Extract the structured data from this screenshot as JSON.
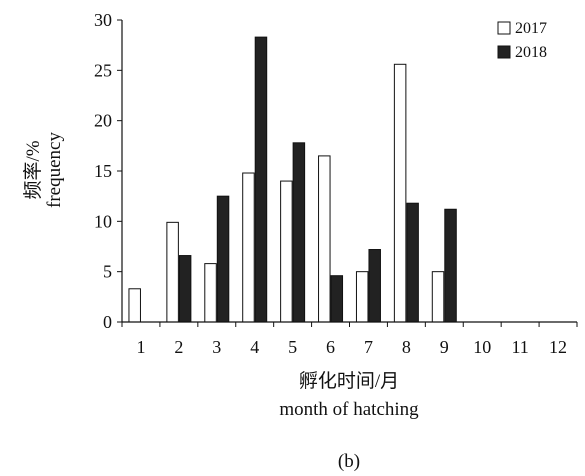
{
  "chart_data": {
    "type": "bar",
    "categories": [
      "1",
      "2",
      "3",
      "4",
      "5",
      "6",
      "7",
      "8",
      "9",
      "10",
      "11",
      "12"
    ],
    "series": [
      {
        "name": "2017",
        "values": [
          3.3,
          9.9,
          5.8,
          14.8,
          14.0,
          16.5,
          5.0,
          25.6,
          5.0,
          0,
          0,
          0
        ],
        "color": "#ffffff"
      },
      {
        "name": "2018",
        "values": [
          0,
          6.6,
          12.5,
          28.3,
          17.8,
          4.6,
          7.2,
          11.8,
          11.2,
          0,
          0,
          0
        ],
        "color": "#222222"
      }
    ],
    "ylim": [
      0,
      30
    ],
    "yticks": [
      0,
      5,
      10,
      15,
      20,
      25,
      30
    ],
    "ylabel_cn": "频率/%",
    "ylabel_en": "frequency",
    "xlabel_cn": "孵化时间/月",
    "xlabel_en": "month of hatching",
    "legend_position": "top-right",
    "grid": false
  },
  "figure": {
    "panel_label": "(b)"
  }
}
